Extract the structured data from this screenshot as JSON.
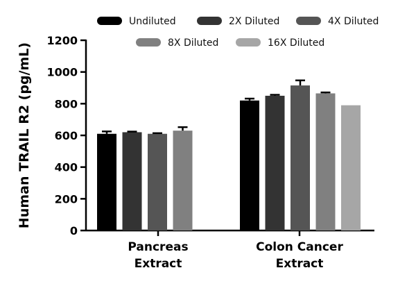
{
  "chart_data": {
    "type": "bar",
    "title": "",
    "xlabel": "",
    "ylabel": "Human TRAIL R2 (pg/mL)",
    "ylim": [
      0,
      1200
    ],
    "yticks": [
      0,
      200,
      400,
      600,
      800,
      1000,
      1200
    ],
    "grid": false,
    "legend_position": "top",
    "categories": [
      {
        "lines": [
          "Pancreas",
          "Extract"
        ]
      },
      {
        "lines": [
          "Colon Cancer",
          "Extract"
        ]
      }
    ],
    "series": [
      {
        "name": "Undiluted",
        "color": "#000000",
        "values": [
          610,
          820
        ],
        "errors": [
          15,
          12
        ]
      },
      {
        "name": "2X Diluted",
        "color": "#333333",
        "values": [
          620,
          850
        ],
        "errors": [
          4,
          6
        ]
      },
      {
        "name": "4X Diluted",
        "color": "#555555",
        "values": [
          610,
          915
        ],
        "errors": [
          4,
          32
        ]
      },
      {
        "name": "8X Diluted",
        "color": "#808080",
        "values": [
          630,
          865
        ],
        "errors": [
          22,
          6
        ]
      },
      {
        "name": "16X Diluted",
        "color": "#a6a6a6",
        "values": [
          null,
          790
        ],
        "errors": [
          null,
          0
        ]
      }
    ]
  }
}
